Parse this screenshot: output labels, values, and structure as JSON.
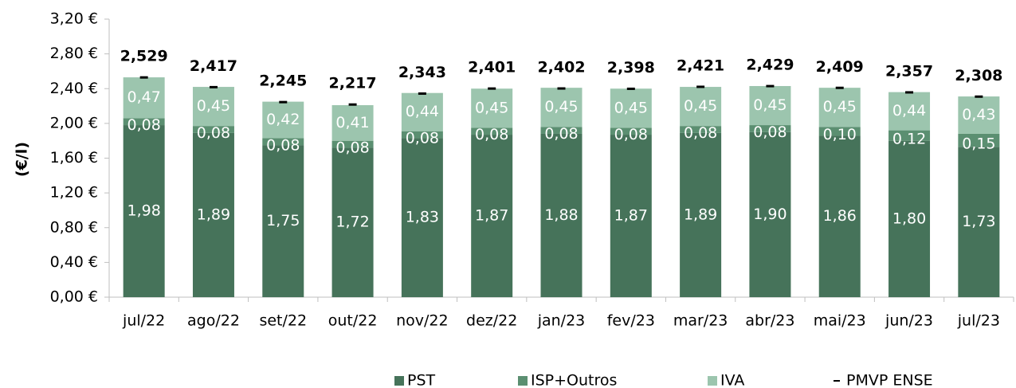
{
  "chart_data": {
    "type": "bar",
    "stacked": true,
    "y_label": "(€/l)",
    "categories": [
      "jul/22",
      "ago/22",
      "set/22",
      "out/22",
      "nov/22",
      "dez/22",
      "jan/23",
      "fev/23",
      "mar/23",
      "abr/23",
      "mai/23",
      "jun/23",
      "jul/23"
    ],
    "ylim": [
      0,
      3.2
    ],
    "yticks": [
      {
        "value": 0,
        "label": "0,00 €"
      },
      {
        "value": 0.4,
        "label": "0,40 €"
      },
      {
        "value": 0.8,
        "label": "0,80 €"
      },
      {
        "value": 1.2,
        "label": "1,20 €"
      },
      {
        "value": 1.6,
        "label": "1,60 €"
      },
      {
        "value": 2,
        "label": "2,00 €"
      },
      {
        "value": 2.4,
        "label": "2,40 €"
      },
      {
        "value": 2.8,
        "label": "2,80 €"
      },
      {
        "value": 3.2,
        "label": "3,20 €"
      }
    ],
    "legend": "bottom",
    "series": [
      {
        "name": "PST",
        "color": "#46735a",
        "values": [
          1.98,
          1.89,
          1.75,
          1.72,
          1.83,
          1.87,
          1.88,
          1.87,
          1.89,
          1.9,
          1.86,
          1.8,
          1.73
        ],
        "value_labels": [
          "1,98",
          "1,89",
          "1,75",
          "1,72",
          "1,83",
          "1,87",
          "1,88",
          "1,87",
          "1,89",
          "1,90",
          "1,86",
          "1,80",
          "1,73"
        ]
      },
      {
        "name": "ISP+Outros",
        "color": "#5b8f71",
        "values": [
          0.08,
          0.08,
          0.08,
          0.08,
          0.08,
          0.08,
          0.08,
          0.08,
          0.08,
          0.08,
          0.1,
          0.12,
          0.15
        ],
        "value_labels": [
          "0,08",
          "0,08",
          "0,08",
          "0,08",
          "0,08",
          "0,08",
          "0,08",
          "0,08",
          "0,08",
          "0,08",
          "0,10",
          "0,12",
          "0,15"
        ]
      },
      {
        "name": "IVA",
        "color": "#9cc5ae",
        "values": [
          0.47,
          0.45,
          0.42,
          0.41,
          0.44,
          0.45,
          0.45,
          0.45,
          0.45,
          0.45,
          0.45,
          0.44,
          0.43
        ],
        "value_labels": [
          "0,47",
          "0,45",
          "0,42",
          "0,41",
          "0,44",
          "0,45",
          "0,45",
          "0,45",
          "0,45",
          "0,45",
          "0,45",
          "0,44",
          "0,43"
        ]
      },
      {
        "name": "PMVP ENSE",
        "type": "dash",
        "color": "#000000",
        "values": [
          2.529,
          2.417,
          2.245,
          2.217,
          2.343,
          2.401,
          2.402,
          2.398,
          2.421,
          2.429,
          2.409,
          2.357,
          2.308
        ],
        "value_labels": [
          "2,529",
          "2,417",
          "2,245",
          "2,217",
          "2,343",
          "2,401",
          "2,402",
          "2,398",
          "2,421",
          "2,429",
          "2,409",
          "2,357",
          "2,308"
        ]
      }
    ]
  }
}
